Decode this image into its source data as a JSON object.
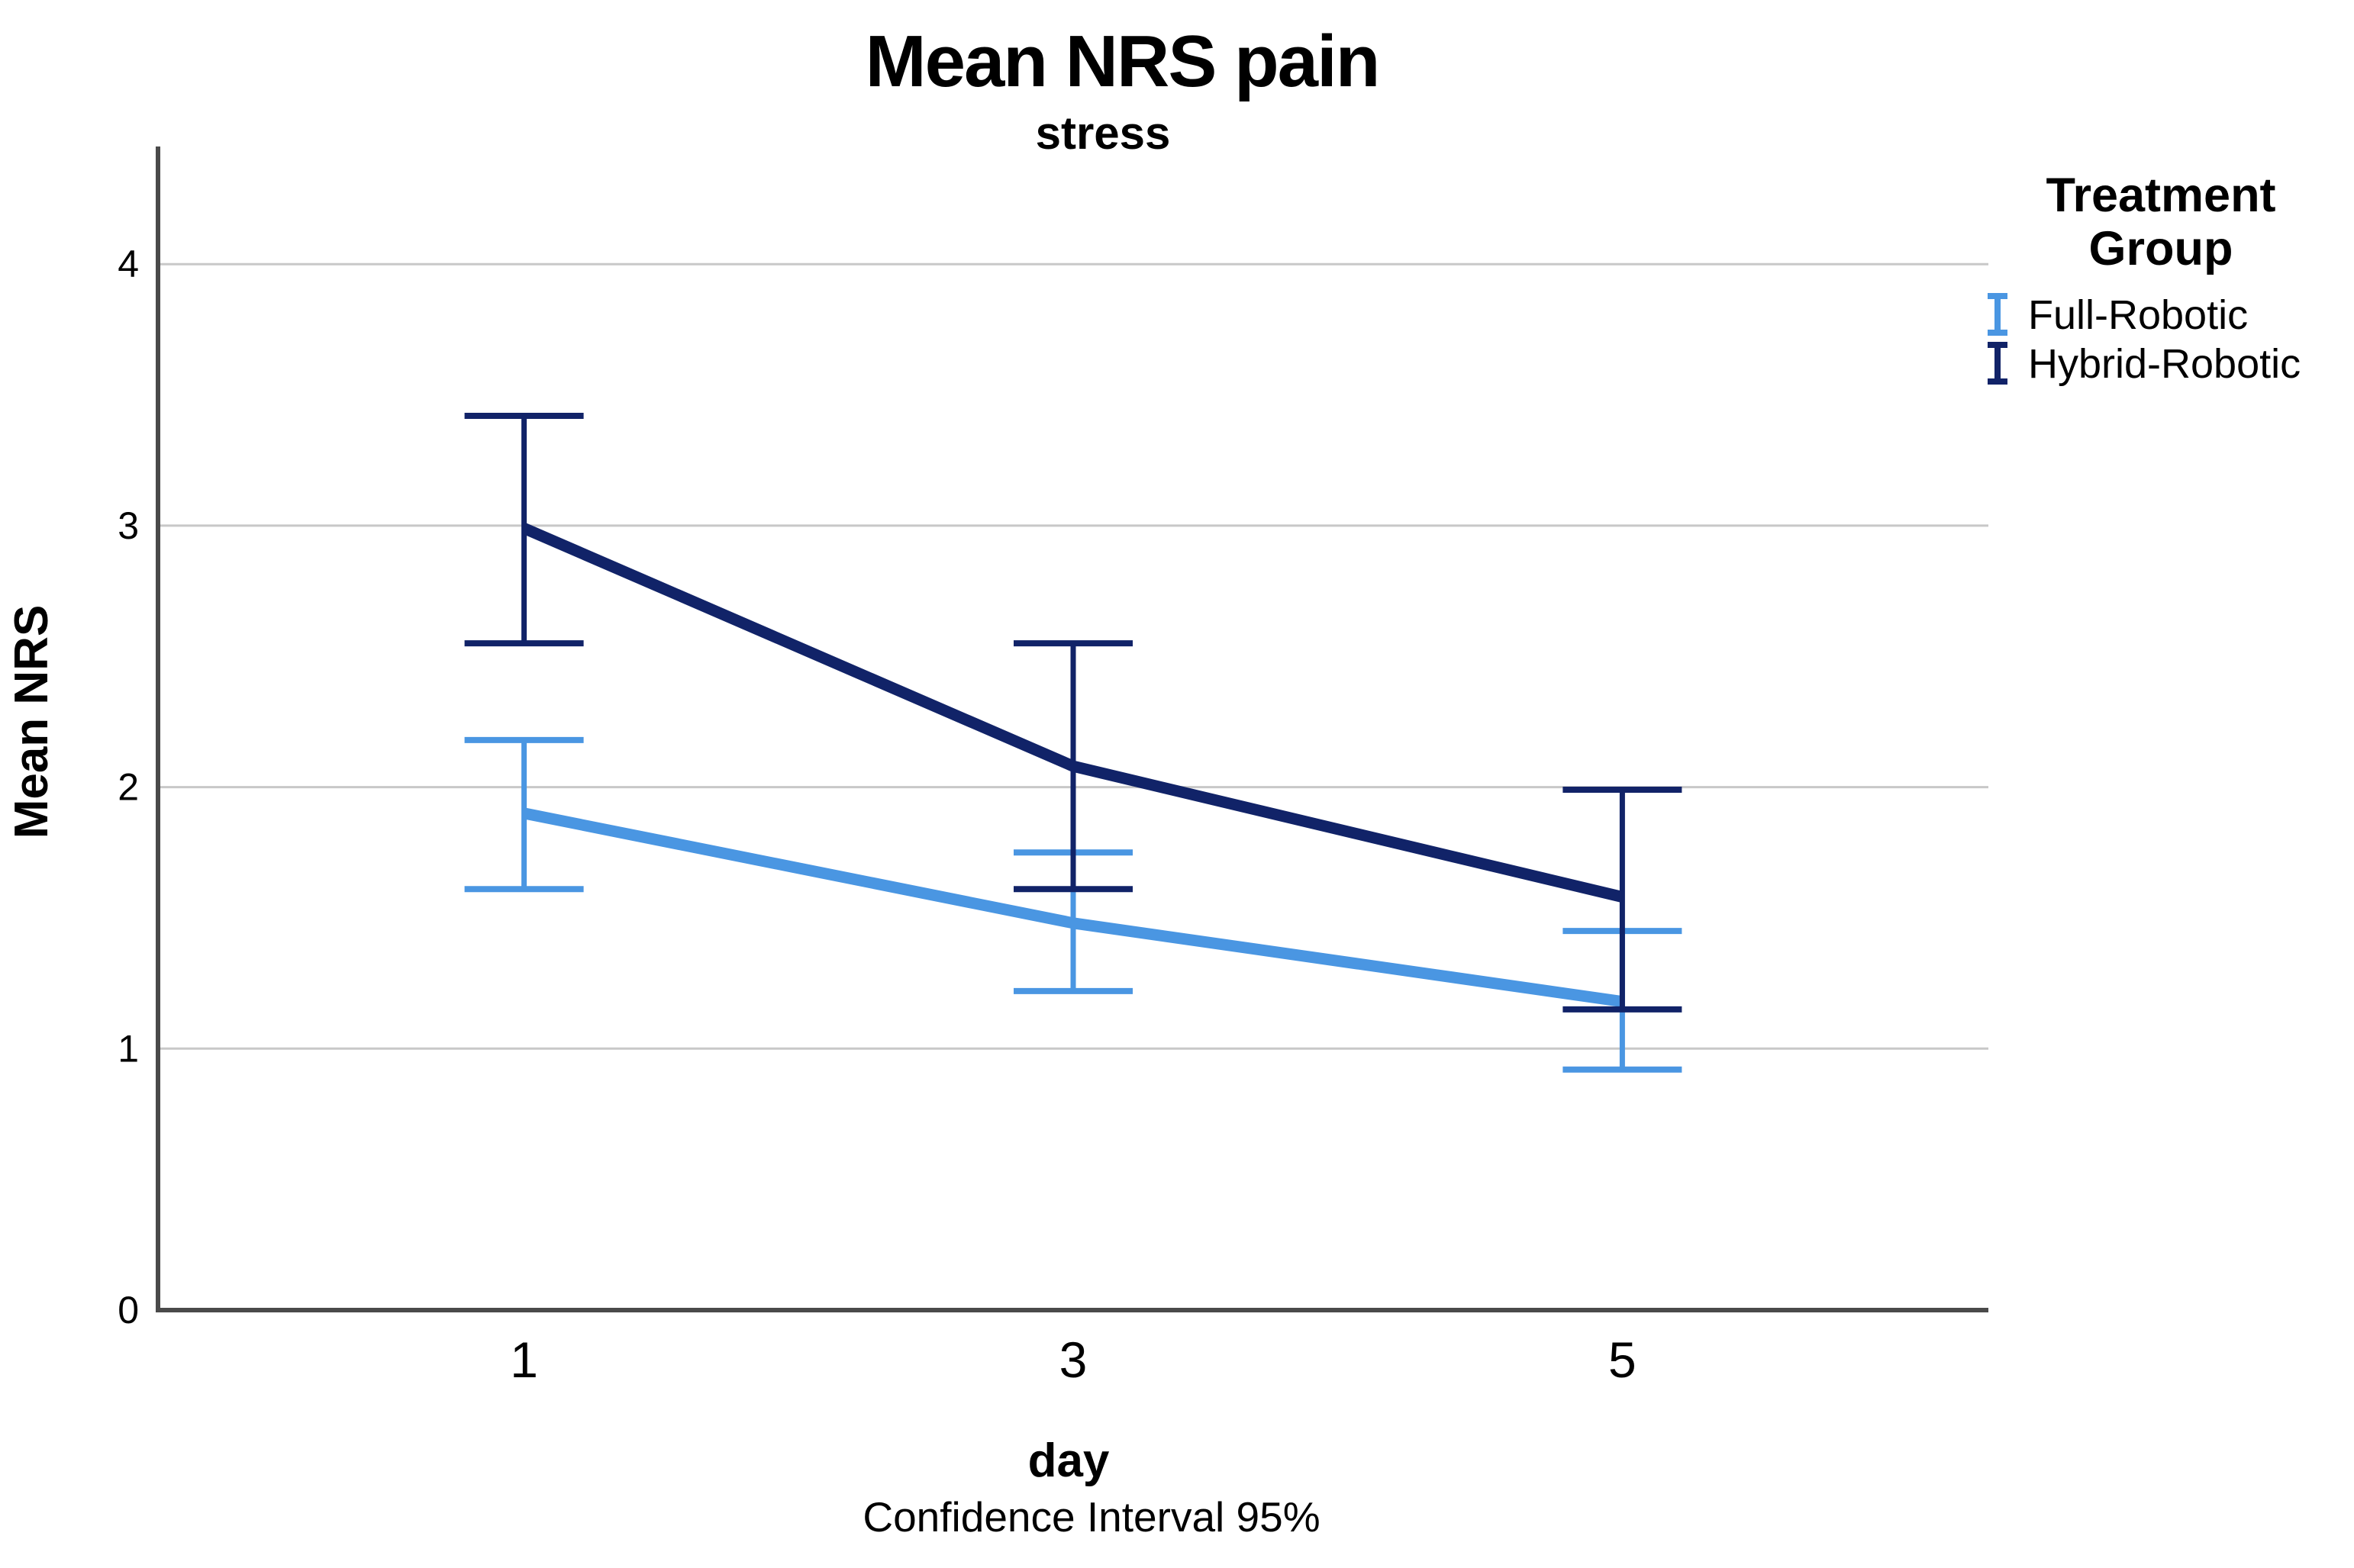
{
  "chart_data": {
    "type": "line",
    "title": "Mean NRS pain",
    "subtitle": "stress",
    "xlabel": "day",
    "ylabel": "Mean NRS",
    "footnote": "Confidence Interval 95%",
    "categories": [
      "1",
      "3",
      "5"
    ],
    "yticks": [
      "0",
      "1",
      "2",
      "3",
      "4"
    ],
    "ylim": [
      0,
      4.45
    ],
    "grid": true,
    "error_bars": "95% confidence interval",
    "legend": {
      "title": "Treatment Group",
      "title_line1": "Treatment",
      "title_line2": "Group",
      "position": "top-right"
    },
    "series": [
      {
        "name": "Full-Robotic",
        "color": "#4A96E2",
        "means": [
          1.9,
          1.48,
          1.18
        ],
        "ci_low": [
          1.61,
          1.22,
          0.92
        ],
        "ci_high": [
          2.18,
          1.75,
          1.45
        ]
      },
      {
        "name": "Hybrid-Robotic",
        "color": "#112368",
        "means": [
          2.99,
          2.08,
          1.58
        ],
        "ci_low": [
          2.55,
          1.61,
          1.15
        ],
        "ci_high": [
          3.42,
          2.55,
          1.99
        ]
      }
    ],
    "colors": {
      "axis": "#4a4a4a",
      "grid": "#c8c8c8",
      "text": "#000000",
      "background": "#ffffff"
    }
  }
}
